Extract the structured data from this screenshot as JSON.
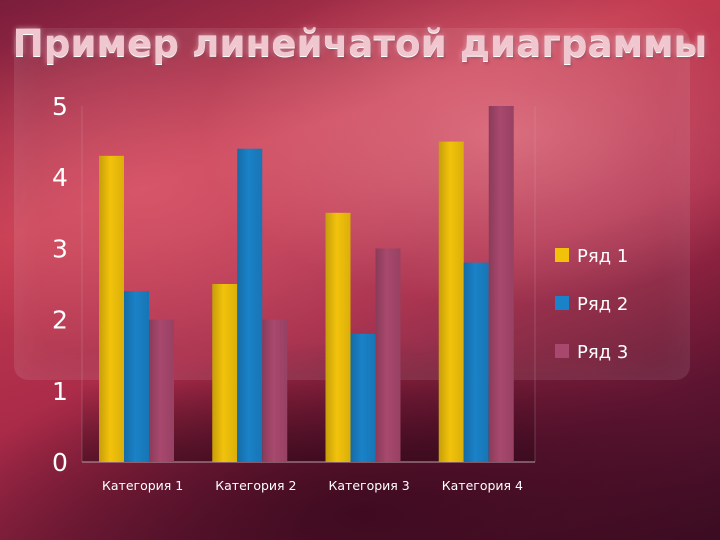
{
  "chart_data": {
    "type": "bar",
    "title": "Пример линейчатой диаграммы",
    "categories": [
      "Категория 1",
      "Категория 2",
      "Категория 3",
      "Категория 4"
    ],
    "series": [
      {
        "name": "Ряд 1",
        "values": [
          4.3,
          2.5,
          3.5,
          4.5
        ],
        "color": "#f2c20b"
      },
      {
        "name": "Ряд 2",
        "values": [
          2.4,
          4.4,
          1.8,
          2.8
        ],
        "color": "#1a82c8"
      },
      {
        "name": "Ряд 3",
        "values": [
          2.0,
          2.0,
          3.0,
          5.0
        ],
        "color": "#a8486e"
      }
    ],
    "yticks": [
      "0",
      "1",
      "2",
      "3",
      "4",
      "5"
    ],
    "ylim": [
      0,
      5
    ],
    "grid": false,
    "legend_position": "right"
  }
}
